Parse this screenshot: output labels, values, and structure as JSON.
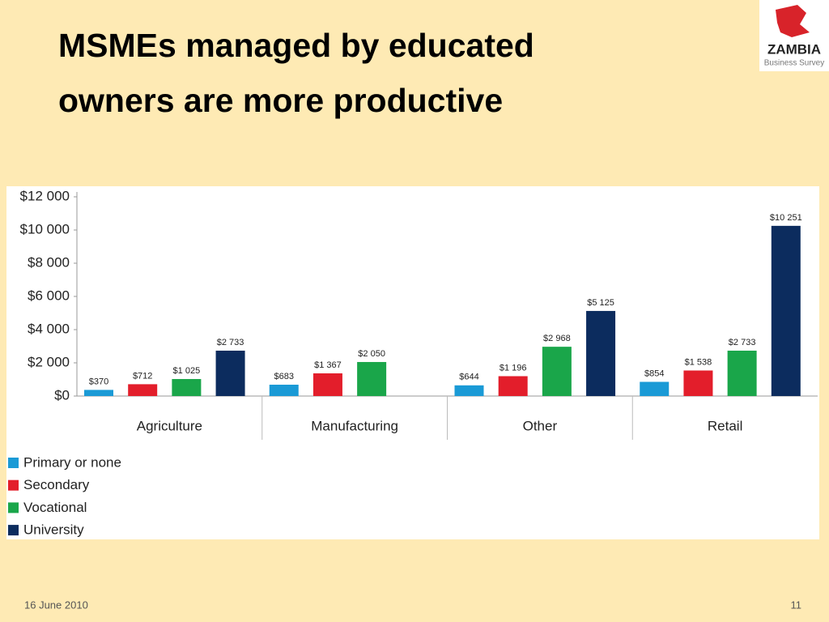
{
  "slide": {
    "date": "16 June 2010",
    "page": 11,
    "logo_name": "ZAMBIA",
    "logo_tagline": "Business Survey"
  },
  "chart_data": {
    "type": "bar",
    "title": "MSMEs managed by educated owners are more productive",
    "categories": [
      "Agriculture",
      "Manufacturing",
      "Other",
      "Retail"
    ],
    "series": [
      {
        "name": "Primary or none",
        "color": "#1a9ad6",
        "values": [
          370,
          683,
          644,
          854
        ],
        "value_labels": [
          "$370",
          "$683",
          "$644",
          "$854"
        ]
      },
      {
        "name": "Secondary",
        "color": "#e31e2b",
        "values": [
          712,
          1367,
          1196,
          1538
        ],
        "value_labels": [
          "$712",
          "$1 367",
          "$1 196",
          "$1 538"
        ]
      },
      {
        "name": "Vocational",
        "color": "#1aa64a",
        "values": [
          1025,
          2050,
          2968,
          2733
        ],
        "value_labels": [
          "$1 025",
          "$2 050",
          "$2 968",
          "$2 733"
        ]
      },
      {
        "name": "University",
        "color": "#0c2c5e",
        "values": [
          2733,
          null,
          5125,
          10251
        ],
        "value_labels": [
          "$2 733",
          null,
          "$5 125",
          "$10 251"
        ]
      }
    ],
    "ylim": [
      0,
      12000
    ],
    "yticks": [
      {
        "value": 0,
        "label": "$0"
      },
      {
        "value": 2000,
        "label": "$2 000"
      },
      {
        "value": 4000,
        "label": "$4 000"
      },
      {
        "value": 6000,
        "label": "$6 000"
      },
      {
        "value": 8000,
        "label": "$8 000"
      },
      {
        "value": 10000,
        "label": "$10 000"
      },
      {
        "value": 12000,
        "label": "$12 000"
      }
    ],
    "grid": false,
    "legend": "bottom-left"
  }
}
